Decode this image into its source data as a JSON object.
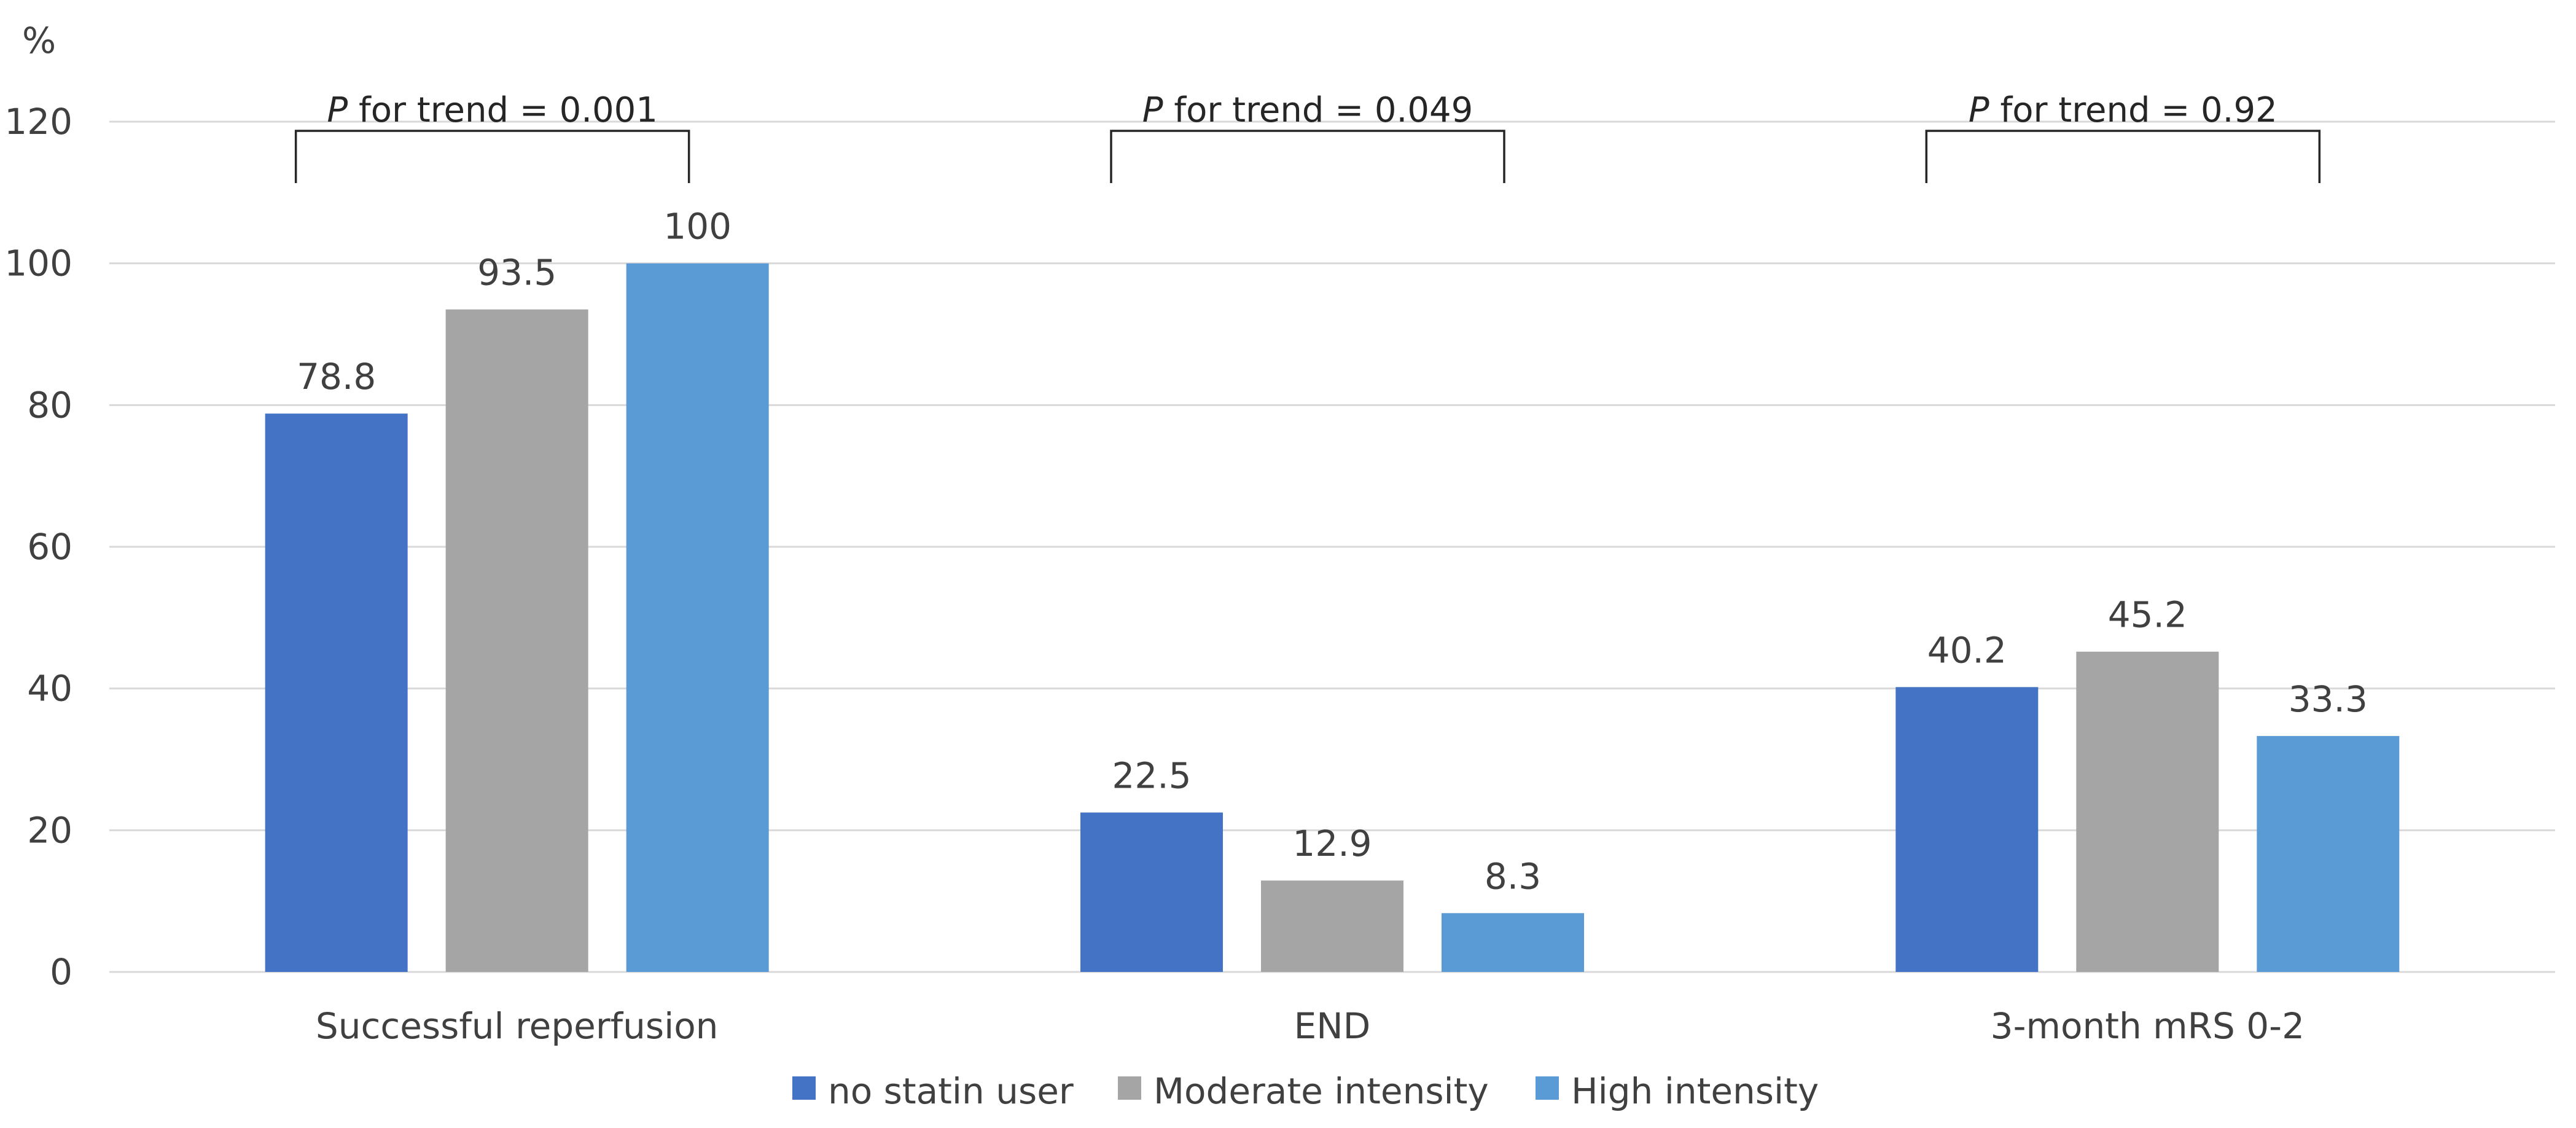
{
  "chart_data": {
    "type": "bar",
    "unit_label": "%",
    "categories": [
      "Successful reperfusion",
      "END",
      "3-month mRS 0-2"
    ],
    "series": [
      {
        "name": "no statin user",
        "color": "#4472c4",
        "values": [
          78.8,
          22.5,
          40.2
        ]
      },
      {
        "name": "Moderate intensity",
        "color": "#a5a5a5",
        "values": [
          93.5,
          12.9,
          45.2
        ]
      },
      {
        "name": "High intensity",
        "color": "#5b9bd5",
        "values": [
          100,
          8.3,
          33.3
        ]
      }
    ],
    "data_labels": [
      [
        "78.8",
        "22.5",
        "40.2"
      ],
      [
        "93.5",
        "12.9",
        "45.2"
      ],
      [
        "100",
        "8.3",
        "33.3"
      ]
    ],
    "ylim": [
      0,
      120
    ],
    "yticks": [
      0,
      20,
      40,
      60,
      80,
      100,
      120
    ],
    "grid": true,
    "legend_position": "bottom",
    "trend_annotations": [
      {
        "p": "P",
        "text": " for trend = 0.001"
      },
      {
        "p": "P",
        "text": " for trend = 0.049"
      },
      {
        "p": "P",
        "text": " for trend = 0.92"
      }
    ]
  }
}
